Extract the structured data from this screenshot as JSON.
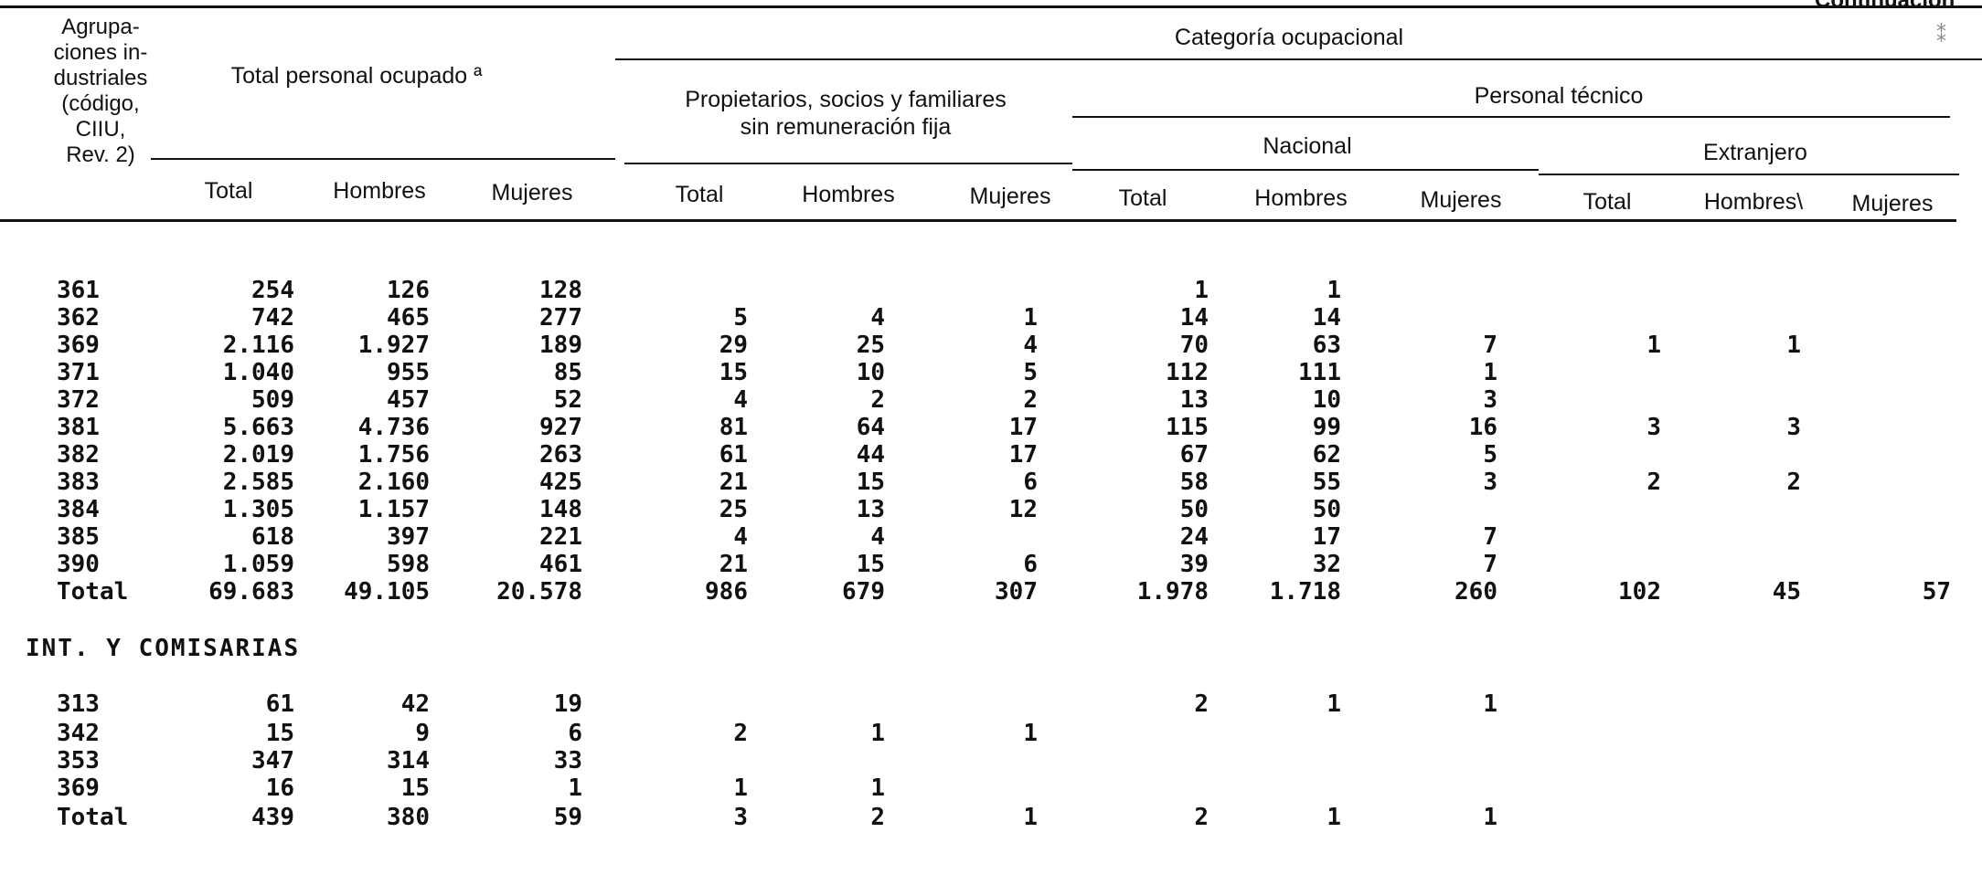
{
  "header": {
    "continuation": "Continuación",
    "stub_label": [
      "Agrupa-",
      "ciones in-",
      "dustriales",
      "(código,",
      "CIIU,",
      "Rev. 2)"
    ],
    "total_group": "Total personal ocupado ª",
    "categoria": "Categoría ocupacional",
    "propietarios": [
      "Propietarios, socios y familiares",
      "sin remuneración fija"
    ],
    "personal_tecnico": "Personal técnico",
    "nacional": "Nacional",
    "extranjero": "Extranjero",
    "col_total": "Total",
    "col_hombres": "Hombres",
    "col_mujeres": "Mujeres",
    "col_hombres_ext": "Hombres\\"
  },
  "section1": {
    "rows": [
      [
        "361",
        "254",
        "126",
        "128",
        "",
        "",
        "",
        "1",
        "1",
        "",
        "",
        "",
        ""
      ],
      [
        "362",
        "742",
        "465",
        "277",
        "5",
        "4",
        "1",
        "14",
        "14",
        "",
        "",
        "",
        ""
      ],
      [
        "369",
        "2.116",
        "1.927",
        "189",
        "29",
        "25",
        "4",
        "70",
        "63",
        "7",
        "1",
        "1",
        ""
      ],
      [
        "371",
        "1.040",
        "955",
        "85",
        "15",
        "10",
        "5",
        "112",
        "111",
        "1",
        "",
        "",
        ""
      ],
      [
        "372",
        "509",
        "457",
        "52",
        "4",
        "2",
        "2",
        "13",
        "10",
        "3",
        "",
        "",
        ""
      ],
      [
        "381",
        "5.663",
        "4.736",
        "927",
        "81",
        "64",
        "17",
        "115",
        "99",
        "16",
        "3",
        "3",
        ""
      ],
      [
        "382",
        "2.019",
        "1.756",
        "263",
        "61",
        "44",
        "17",
        "67",
        "62",
        "5",
        "",
        "",
        ""
      ],
      [
        "383",
        "2.585",
        "2.160",
        "425",
        "21",
        "15",
        "6",
        "58",
        "55",
        "3",
        "2",
        "2",
        ""
      ],
      [
        "384",
        "1.305",
        "1.157",
        "148",
        "25",
        "13",
        "12",
        "50",
        "50",
        "",
        "",
        "",
        ""
      ],
      [
        "385",
        "618",
        "397",
        "221",
        "4",
        "4",
        "",
        "24",
        "17",
        "7",
        "",
        "",
        ""
      ],
      [
        "390",
        "1.059",
        "598",
        "461",
        "21",
        "15",
        "6",
        "39",
        "32",
        "7",
        "",
        "",
        ""
      ],
      [
        "Total",
        "69.683",
        "49.105",
        "20.578",
        "986",
        "679",
        "307",
        "1.978",
        "1.718",
        "260",
        "102",
        "45",
        "57"
      ]
    ]
  },
  "section2": {
    "title": "INT. Y COMISARIAS",
    "rows": [
      [
        "313",
        "61",
        "42",
        "19",
        "",
        "",
        "",
        "2",
        "1",
        "1",
        "",
        "",
        ""
      ],
      [
        "342",
        "15",
        "9",
        "6",
        "2",
        "1",
        "1",
        "",
        "",
        "",
        "",
        "",
        ""
      ],
      [
        "353",
        "347",
        "314",
        "33",
        "",
        "",
        "",
        "",
        "",
        "",
        "",
        "",
        ""
      ],
      [
        "369",
        "16",
        "15",
        "1",
        "1",
        "1",
        "",
        "",
        "",
        "",
        "",
        "",
        ""
      ],
      [
        "Total",
        "439",
        "380",
        "59",
        "3",
        "2",
        "1",
        "2",
        "1",
        "1",
        "",
        "",
        ""
      ]
    ]
  }
}
